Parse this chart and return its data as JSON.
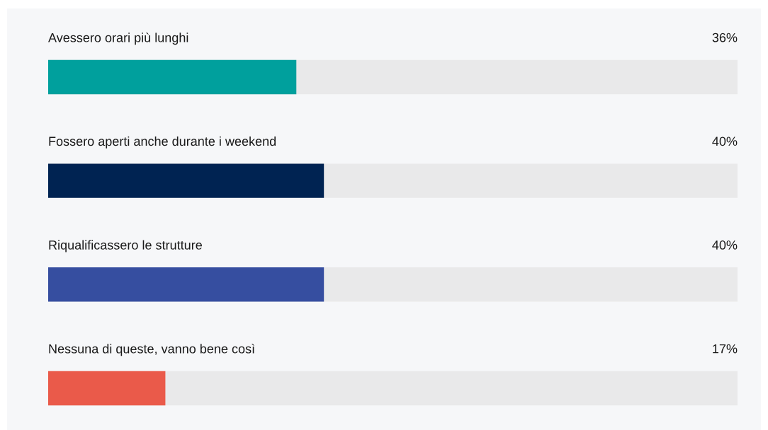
{
  "chart_data": {
    "type": "bar",
    "orientation": "horizontal",
    "categories": [
      "Avessero orari più lunghi",
      "Fossero aperti anche durante i weekend",
      "Riqualificassero le strutture",
      "Nessuna di queste, vanno bene così"
    ],
    "values": [
      36,
      40,
      40,
      17
    ],
    "colors": [
      "#00a09d",
      "#002352",
      "#364ea0",
      "#ea5a4a"
    ],
    "value_labels": [
      "36%",
      "40%",
      "40%",
      "17%"
    ],
    "xlim": [
      0,
      100
    ]
  }
}
